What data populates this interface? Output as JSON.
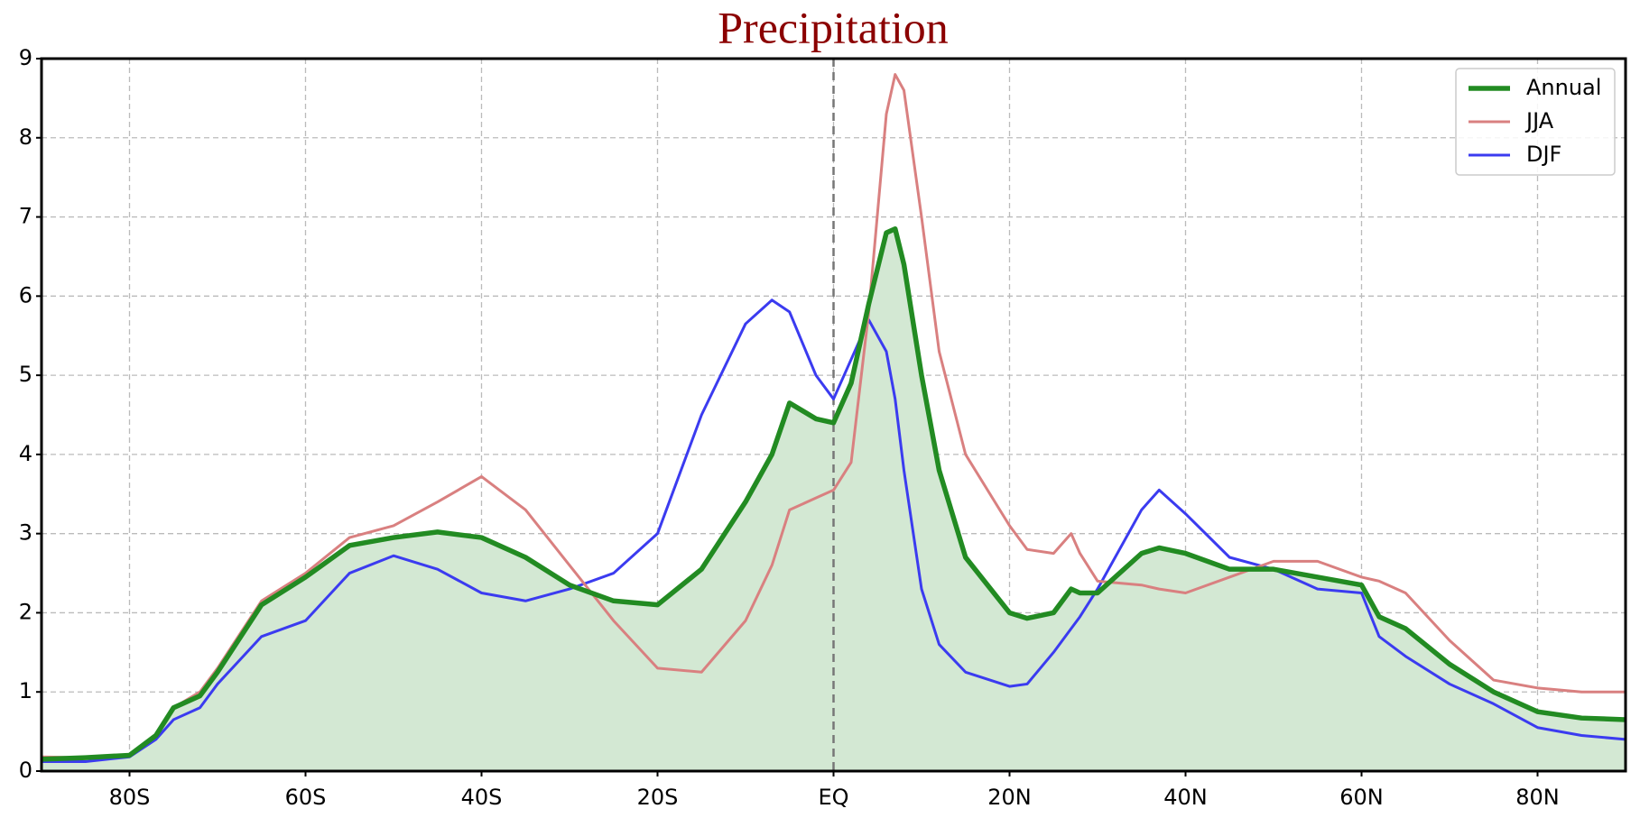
{
  "chart_data": {
    "type": "line",
    "title": "Precipitation",
    "x": [
      -90,
      -85,
      -80,
      -77,
      -75,
      -72,
      -70,
      -65,
      -60,
      -55,
      -50,
      -45,
      -40,
      -35,
      -30,
      -25,
      -20,
      -15,
      -10,
      -7,
      -5,
      -2,
      0,
      2,
      4,
      6,
      7,
      8,
      10,
      12,
      15,
      20,
      22,
      25,
      27,
      28,
      30,
      35,
      37,
      40,
      45,
      50,
      55,
      60,
      62,
      65,
      70,
      75,
      80,
      85,
      90
    ],
    "series": [
      {
        "name": "Annual",
        "color": "#228b22",
        "fill": "#d3e8d3",
        "values": [
          0.15,
          0.17,
          0.2,
          0.45,
          0.8,
          0.95,
          1.25,
          2.1,
          2.45,
          2.85,
          2.95,
          3.02,
          2.95,
          2.7,
          2.35,
          2.15,
          2.1,
          2.55,
          3.4,
          4.0,
          4.65,
          4.45,
          4.4,
          4.9,
          5.9,
          6.8,
          6.85,
          6.4,
          5.0,
          3.8,
          2.7,
          2.0,
          1.93,
          2.0,
          2.3,
          2.25,
          2.25,
          2.75,
          2.82,
          2.75,
          2.55,
          2.55,
          2.45,
          2.35,
          1.95,
          1.8,
          1.35,
          1.0,
          0.75,
          0.67,
          0.65
        ]
      },
      {
        "name": "JJA",
        "color": "#d98080",
        "values": [
          0.18,
          0.17,
          0.2,
          0.45,
          0.8,
          1.0,
          1.3,
          2.15,
          2.5,
          2.95,
          3.1,
          3.4,
          3.72,
          3.3,
          2.6,
          1.9,
          1.3,
          1.25,
          1.9,
          2.6,
          3.3,
          3.45,
          3.55,
          3.9,
          5.8,
          8.3,
          8.8,
          8.6,
          7.0,
          5.3,
          4.0,
          3.1,
          2.8,
          2.75,
          3.0,
          2.75,
          2.4,
          2.35,
          2.3,
          2.25,
          2.45,
          2.65,
          2.65,
          2.45,
          2.4,
          2.25,
          1.65,
          1.15,
          1.05,
          1.0,
          1.0
        ]
      },
      {
        "name": "DJF",
        "color": "#3b3bf0",
        "values": [
          0.12,
          0.12,
          0.18,
          0.4,
          0.65,
          0.8,
          1.1,
          1.7,
          1.9,
          2.5,
          2.72,
          2.55,
          2.25,
          2.15,
          2.3,
          2.5,
          3.0,
          4.5,
          5.65,
          5.95,
          5.8,
          5.0,
          4.7,
          5.2,
          5.7,
          5.3,
          4.7,
          3.8,
          2.3,
          1.6,
          1.25,
          1.07,
          1.1,
          1.5,
          1.8,
          1.95,
          2.3,
          3.3,
          3.55,
          3.25,
          2.7,
          2.55,
          2.3,
          2.25,
          1.7,
          1.45,
          1.1,
          0.85,
          0.55,
          0.45,
          0.4
        ]
      }
    ],
    "xlim": [
      -90,
      90
    ],
    "xticks": [
      {
        "value": -80,
        "label": "80S"
      },
      {
        "value": -60,
        "label": "60S"
      },
      {
        "value": -40,
        "label": "40S"
      },
      {
        "value": -20,
        "label": "20S"
      },
      {
        "value": 0,
        "label": "EQ"
      },
      {
        "value": 20,
        "label": "20N"
      },
      {
        "value": 40,
        "label": "40N"
      },
      {
        "value": 60,
        "label": "60N"
      },
      {
        "value": 80,
        "label": "80N"
      }
    ],
    "ylim": [
      0,
      9
    ],
    "yticks": [
      0,
      1,
      2,
      3,
      4,
      5,
      6,
      7,
      8,
      9
    ],
    "vline": 0,
    "grid": true,
    "legend": "upper right"
  }
}
